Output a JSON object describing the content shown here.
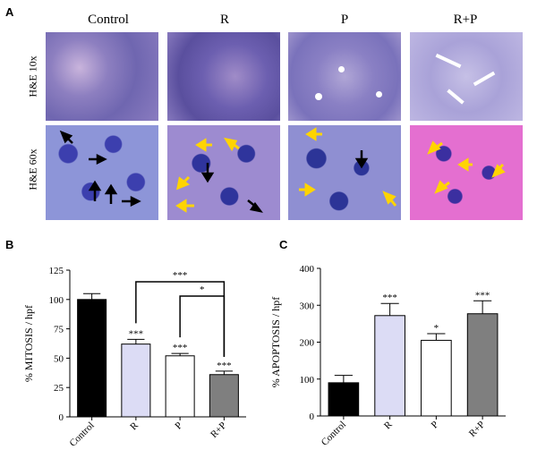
{
  "panel_a": {
    "letter": "A",
    "columns": [
      "Control",
      "R",
      "P",
      "R+P"
    ],
    "rows": [
      "H&E 10x",
      "H&E 60x"
    ]
  },
  "chart_data": [
    {
      "panel": "B",
      "type": "bar",
      "title": "",
      "xlabel": "",
      "ylabel": "% MITOSIS / hpf",
      "categories": [
        "Control",
        "R",
        "P",
        "R+P"
      ],
      "values": [
        100,
        62,
        52,
        36
      ],
      "errors": [
        5,
        4,
        2,
        3
      ],
      "ylim": [
        0,
        125
      ],
      "yticks": [
        0,
        25,
        50,
        75,
        100,
        125
      ],
      "bar_colors": [
        "#000000",
        "#dcdcf5",
        "#ffffff",
        "#7f7f7f"
      ],
      "significance": [
        "",
        "***",
        "***",
        "***"
      ],
      "brackets": [
        {
          "from": "R",
          "to": "R+P",
          "label": "***"
        },
        {
          "from": "P",
          "to": "R+P",
          "label": "*"
        }
      ]
    },
    {
      "panel": "C",
      "type": "bar",
      "title": "",
      "xlabel": "",
      "ylabel": "% APOPTOSIS / hpf",
      "categories": [
        "Control",
        "R",
        "P",
        "R+P"
      ],
      "values": [
        90,
        272,
        205,
        277
      ],
      "errors": [
        20,
        33,
        18,
        35
      ],
      "ylim": [
        0,
        400
      ],
      "yticks": [
        0,
        100,
        200,
        300,
        400
      ],
      "bar_colors": [
        "#000000",
        "#dcdcf5",
        "#ffffff",
        "#7f7f7f"
      ],
      "significance": [
        "",
        "***",
        "*",
        "***"
      ],
      "brackets": []
    }
  ]
}
